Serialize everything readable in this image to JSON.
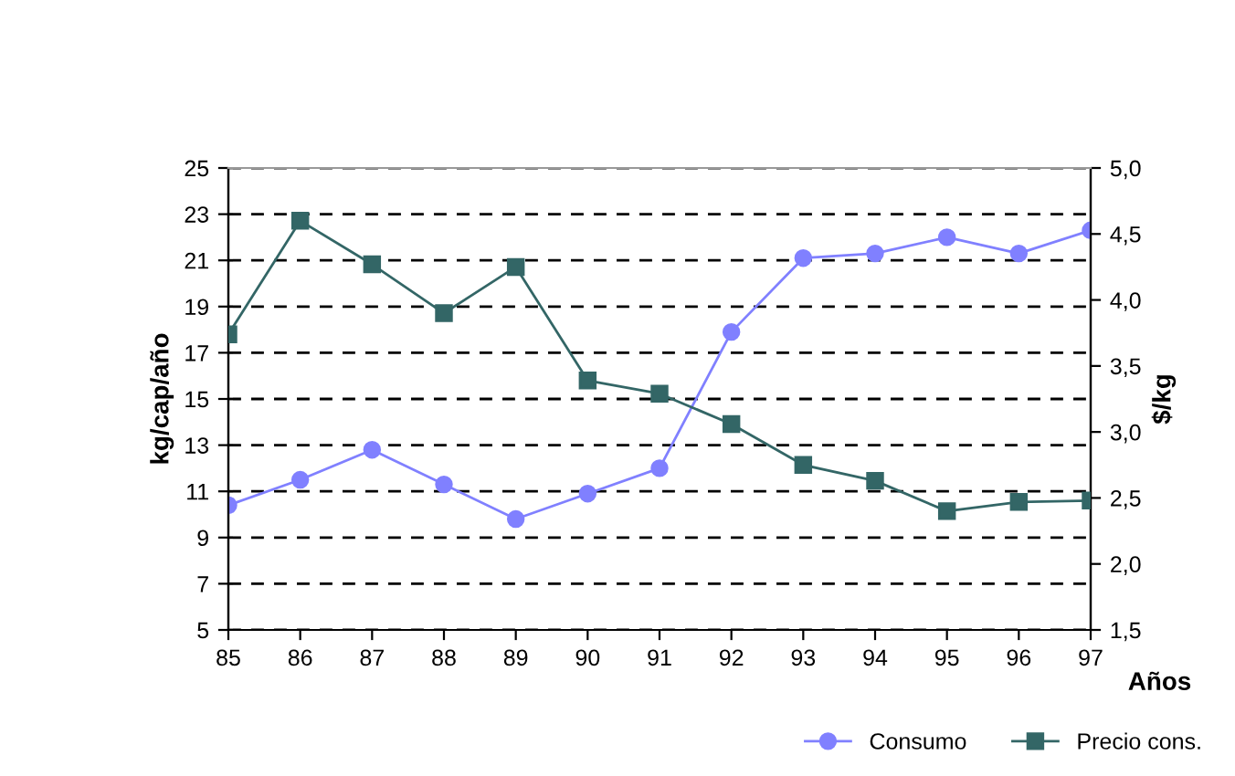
{
  "chart_data": {
    "type": "line",
    "xlabel": "Años",
    "ylabel": "kg/cap/año",
    "y2label": "$/kg",
    "categories": [
      "85",
      "86",
      "87",
      "88",
      "89",
      "90",
      "91",
      "92",
      "93",
      "94",
      "95",
      "96",
      "97"
    ],
    "series": [
      {
        "name": "Consumo",
        "color": "#8080ff",
        "marker": "circle",
        "values": [
          10.4,
          11.5,
          12.8,
          11.3,
          9.8,
          10.9,
          12.0,
          17.9,
          21.1,
          21.3,
          22.0,
          21.3,
          22.3
        ]
      },
      {
        "name": "Precio cons.",
        "color": "#336666",
        "marker": "square",
        "axis": "y2",
        "values": [
          3.74,
          4.6,
          4.27,
          3.9,
          4.25,
          3.39,
          3.29,
          3.06,
          2.75,
          2.63,
          2.4,
          2.47,
          2.48
        ]
      }
    ],
    "ylim": [
      5,
      25
    ],
    "yticks": [
      5,
      7,
      9,
      11,
      13,
      15,
      17,
      19,
      21,
      23,
      25
    ],
    "y2lim": [
      1.5,
      5.0
    ],
    "y2ticks": [
      {
        "value": 1.5,
        "label": "1,5"
      },
      {
        "value": 2.0,
        "label": "2,0"
      },
      {
        "value": 2.5,
        "label": "2,5"
      },
      {
        "value": 3.0,
        "label": "3,0"
      },
      {
        "value": 3.5,
        "label": "3,5"
      },
      {
        "value": 4.0,
        "label": "4,0"
      },
      {
        "value": 4.5,
        "label": "4,5"
      },
      {
        "value": 5.0,
        "label": "5,0"
      }
    ],
    "grid": "y",
    "line_style": "solid",
    "legend": "bottom right"
  }
}
